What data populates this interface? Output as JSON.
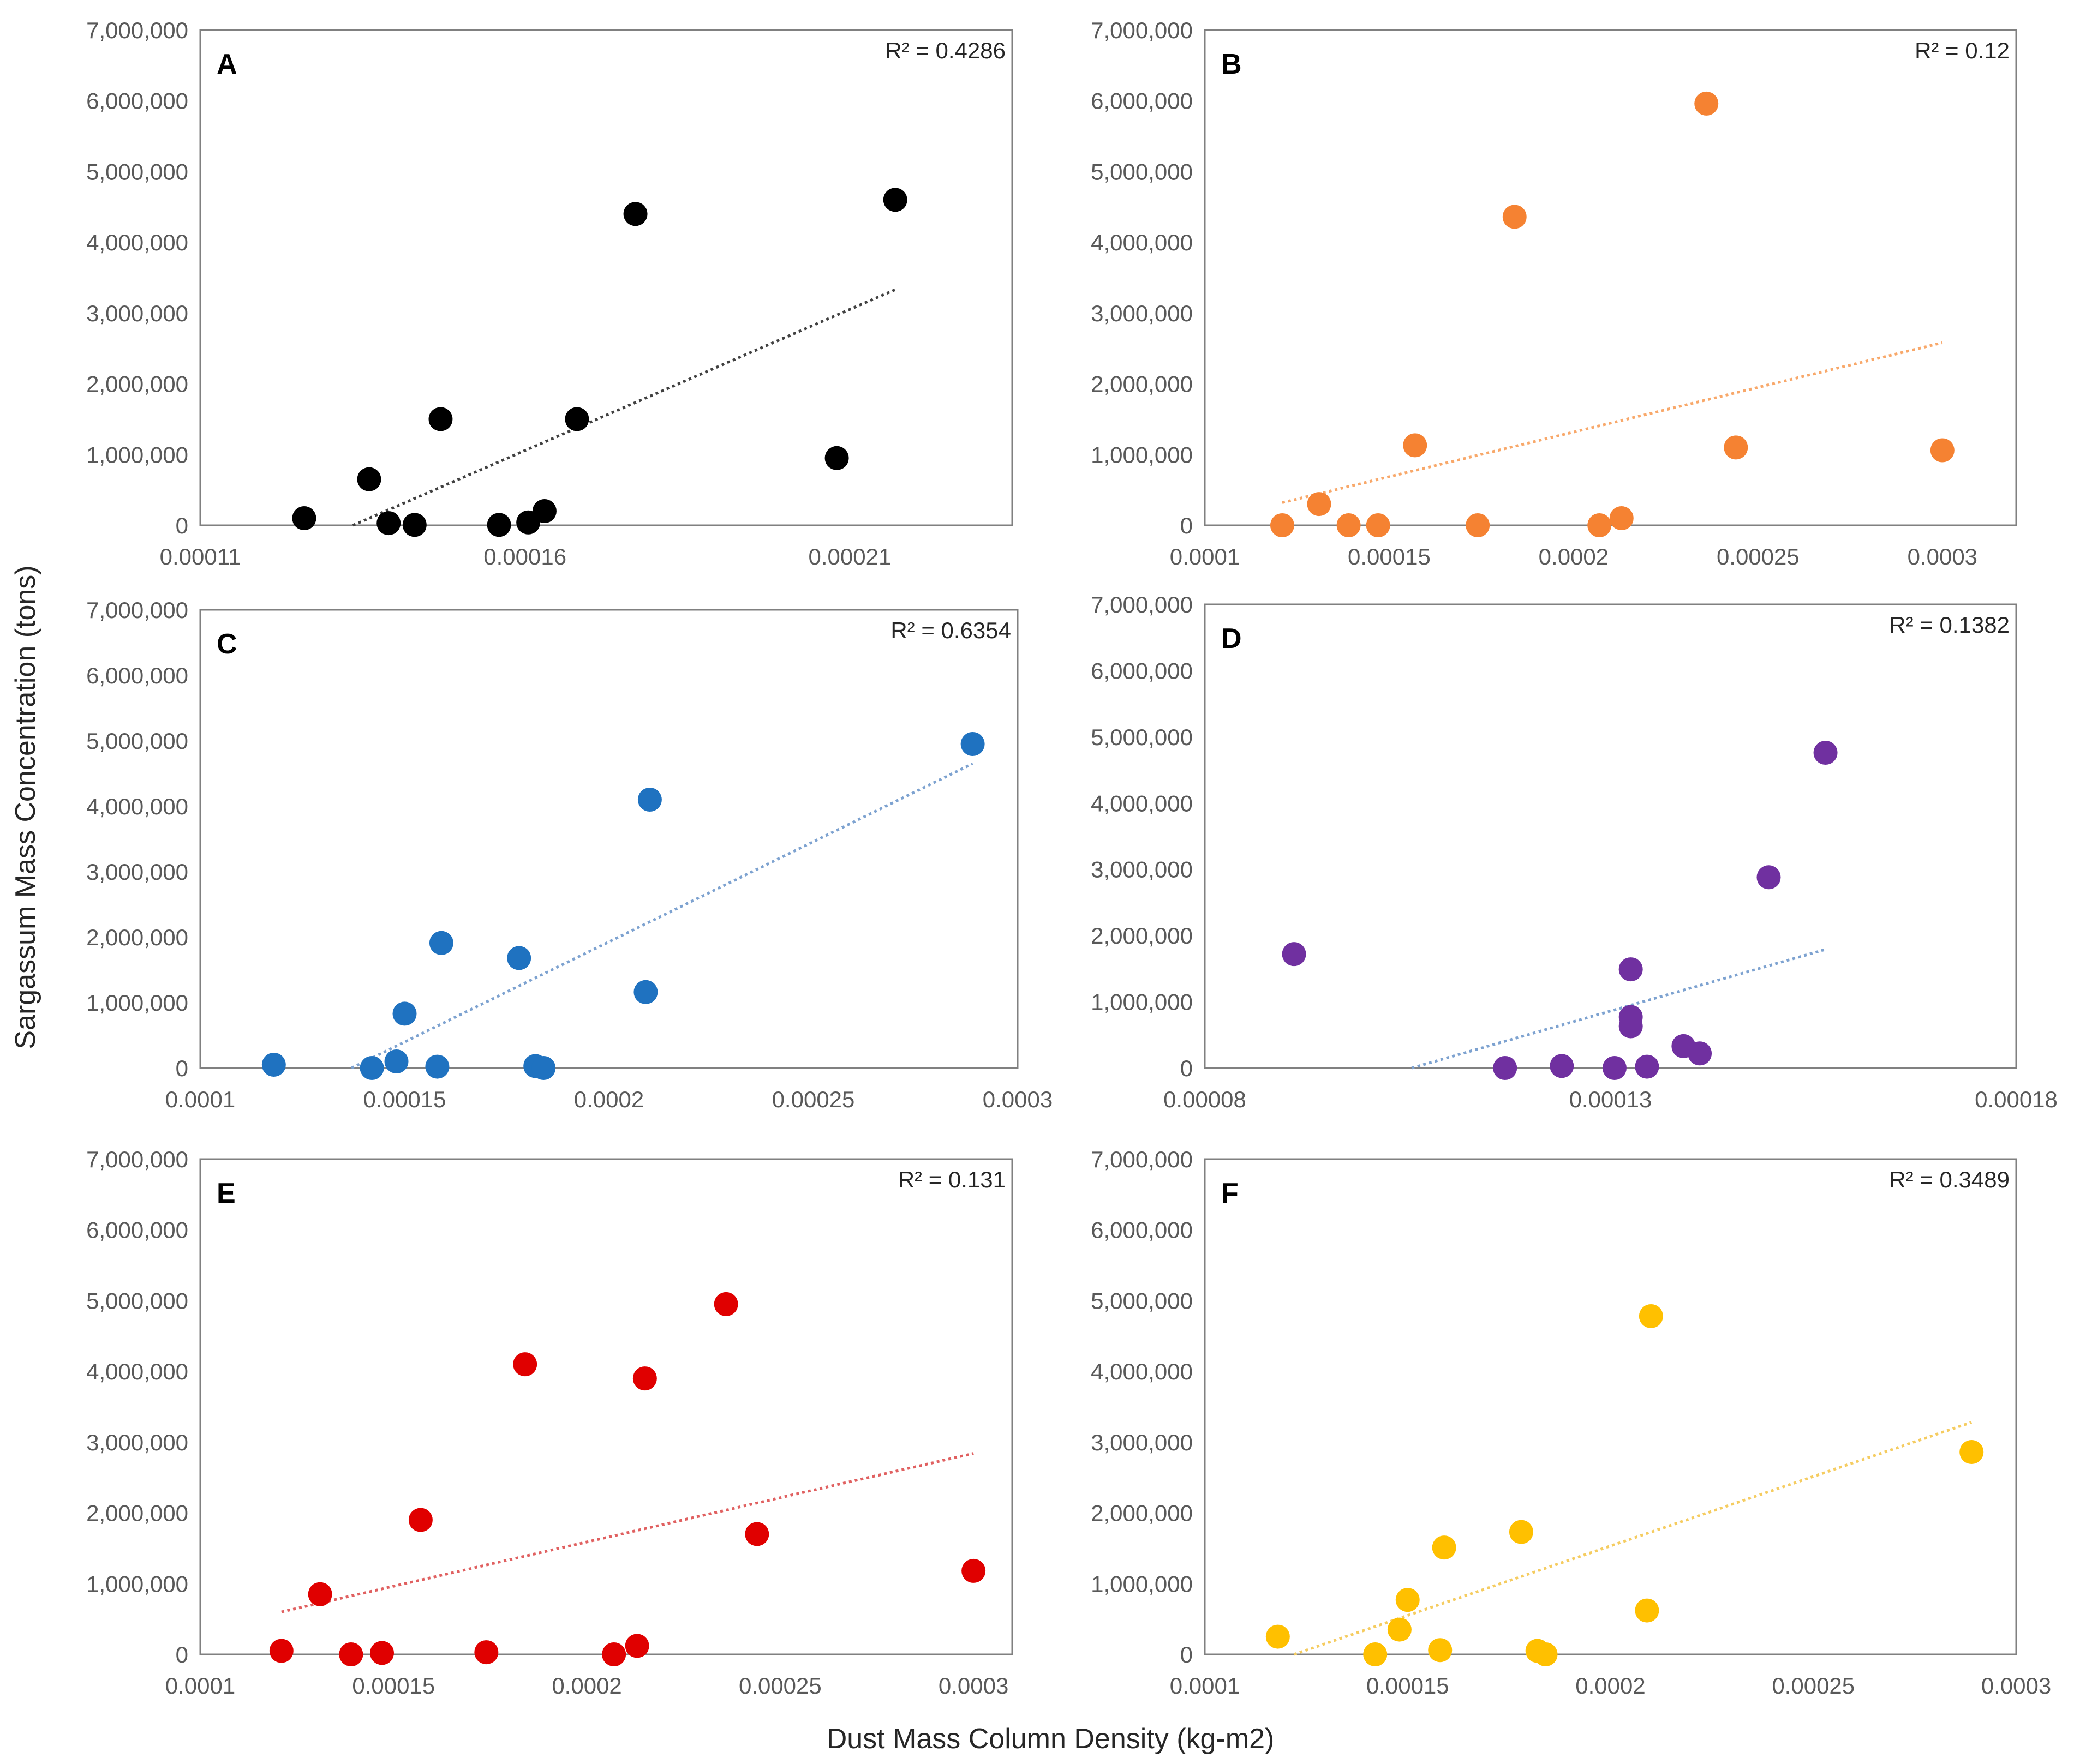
{
  "figure": {
    "xlabel": "Dust Mass Column Density (kg-m2)",
    "ylabel": "Sargassum Mass Concentration (tons)"
  },
  "chart_data": [
    {
      "type": "scatter",
      "panel": "A",
      "r2": "R² = 0.4286",
      "color": "#000000",
      "trend_color": "#404040",
      "xlim": [
        0.00011,
        0.000235
      ],
      "ylim": [
        0,
        7000000
      ],
      "x_ticks": [
        "0.00011",
        "0.00016",
        "0.00021"
      ],
      "x_tick_values": [
        0.00011,
        0.00016,
        0.00021
      ],
      "y_ticks": [
        "0",
        "1,000,000",
        "2,000,000",
        "3,000,000",
        "4,000,000",
        "5,000,000",
        "6,000,000",
        "7,000,000"
      ],
      "y_tick_values": [
        0,
        1000000,
        2000000,
        3000000,
        4000000,
        5000000,
        6000000,
        7000000
      ],
      "points": [
        [
          0.000126,
          100000
        ],
        [
          0.000136,
          650000
        ],
        [
          0.000139,
          30000
        ],
        [
          0.000143,
          5000
        ],
        [
          0.000147,
          1500000
        ],
        [
          0.000156,
          5000
        ],
        [
          0.0001605,
          40000
        ],
        [
          0.000163,
          200000
        ],
        [
          0.000168,
          1500000
        ],
        [
          0.000177,
          4400000
        ],
        [
          0.000208,
          950000
        ],
        [
          0.000217,
          4600000
        ]
      ],
      "trend": [
        [
          0.0001335,
          0
        ],
        [
          0.000217,
          3330000
        ]
      ]
    },
    {
      "type": "scatter",
      "panel": "B",
      "r2": "R² = 0.12",
      "color": "#f58232",
      "trend_color": "#f8a86a",
      "xlim": [
        0.0001,
        0.00032
      ],
      "ylim": [
        0,
        7000000
      ],
      "x_ticks": [
        "0.0001",
        "0.00015",
        "0.0002",
        "0.00025",
        "0.0003"
      ],
      "x_tick_values": [
        0.0001,
        0.00015,
        0.0002,
        0.00025,
        0.0003
      ],
      "y_ticks": [
        "0",
        "1,000,000",
        "2,000,000",
        "3,000,000",
        "4,000,000",
        "5,000,000",
        "6,000,000",
        "7,000,000"
      ],
      "y_tick_values": [
        0,
        1000000,
        2000000,
        3000000,
        4000000,
        5000000,
        6000000,
        7000000
      ],
      "points": [
        [
          0.000121,
          0
        ],
        [
          0.000131,
          300000
        ],
        [
          0.000139,
          0
        ],
        [
          0.000147,
          0
        ],
        [
          0.000157,
          1130000
        ],
        [
          0.000174,
          0
        ],
        [
          0.000184,
          4360000
        ],
        [
          0.000207,
          0
        ],
        [
          0.000213,
          100000
        ],
        [
          0.000236,
          5960000
        ],
        [
          0.000244,
          1100000
        ],
        [
          0.0003,
          1060000
        ]
      ],
      "trend": [
        [
          0.000121,
          320000
        ],
        [
          0.0003,
          2580000
        ]
      ]
    },
    {
      "type": "scatter",
      "panel": "C",
      "r2": "R² = 0.6354",
      "color": "#1f72c0",
      "trend_color": "#7da2d0",
      "xlim": [
        0.0001,
        0.0003
      ],
      "ylim": [
        0,
        7000000
      ],
      "x_ticks": [
        "0.0001",
        "0.00015",
        "0.0002",
        "0.00025",
        "0.0003"
      ],
      "x_tick_values": [
        0.0001,
        0.00015,
        0.0002,
        0.00025,
        0.0003
      ],
      "y_ticks": [
        "0",
        "1,000,000",
        "2,000,000",
        "3,000,000",
        "4,000,000",
        "5,000,000",
        "6,000,000",
        "7,000,000"
      ],
      "y_tick_values": [
        0,
        1000000,
        2000000,
        3000000,
        4000000,
        5000000,
        6000000,
        7000000
      ],
      "points": [
        [
          0.000118,
          50000
        ],
        [
          0.000142,
          0
        ],
        [
          0.000148,
          100000
        ],
        [
          0.00015,
          830000
        ],
        [
          0.000158,
          20000
        ],
        [
          0.000159,
          1910000
        ],
        [
          0.000178,
          1680000
        ],
        [
          0.000182,
          30000
        ],
        [
          0.000184,
          0
        ],
        [
          0.000209,
          1160000
        ],
        [
          0.00021,
          4100000
        ],
        [
          0.000289,
          4950000
        ]
      ],
      "trend": [
        [
          0.000137,
          0
        ],
        [
          0.000289,
          4650000
        ]
      ]
    },
    {
      "type": "scatter",
      "panel": "D",
      "r2": "R² = 0.1382",
      "color": "#7030a0",
      "trend_color": "#7da2d0",
      "xlim": [
        8e-05,
        0.00018
      ],
      "ylim": [
        0,
        7000000
      ],
      "x_ticks": [
        "0.00008",
        "0.00013",
        "0.00018"
      ],
      "x_tick_values": [
        8e-05,
        0.00013,
        0.00018
      ],
      "y_ticks": [
        "0",
        "1,000,000",
        "2,000,000",
        "3,000,000",
        "4,000,000",
        "5,000,000",
        "6,000,000",
        "7,000,000"
      ],
      "y_tick_values": [
        0,
        1000000,
        2000000,
        3000000,
        4000000,
        5000000,
        6000000,
        7000000
      ],
      "points": [
        [
          9.1e-05,
          1720000
        ],
        [
          0.000117,
          0
        ],
        [
          0.000124,
          30000
        ],
        [
          0.0001305,
          0
        ],
        [
          0.0001325,
          1490000
        ],
        [
          0.0001325,
          770000
        ],
        [
          0.0001325,
          630000
        ],
        [
          0.0001345,
          20000
        ],
        [
          0.000139,
          330000
        ],
        [
          0.000141,
          220000
        ],
        [
          0.0001495,
          2880000
        ],
        [
          0.0001565,
          4760000
        ]
      ],
      "trend": [
        [
          0.0001055,
          0
        ],
        [
          0.0001565,
          1790000
        ]
      ]
    },
    {
      "type": "scatter",
      "panel": "E",
      "r2": "R² = 0.131",
      "color": "#e00000",
      "trend_color": "#e06060",
      "xlim": [
        0.0001,
        0.00031
      ],
      "ylim": [
        0,
        7000000
      ],
      "x_ticks": [
        "0.0001",
        "0.00015",
        "0.0002",
        "0.00025",
        "0.0003"
      ],
      "x_tick_values": [
        0.0001,
        0.00015,
        0.0002,
        0.00025,
        0.0003
      ],
      "y_ticks": [
        "0",
        "1,000,000",
        "2,000,000",
        "3,000,000",
        "4,000,000",
        "5,000,000",
        "6,000,000",
        "7,000,000"
      ],
      "y_tick_values": [
        0,
        1000000,
        2000000,
        3000000,
        4000000,
        5000000,
        6000000,
        7000000
      ],
      "points": [
        [
          0.000121,
          50000
        ],
        [
          0.000131,
          850000
        ],
        [
          0.000139,
          0
        ],
        [
          0.000147,
          20000
        ],
        [
          0.000157,
          1900000
        ],
        [
          0.000174,
          30000
        ],
        [
          0.000184,
          4100000
        ],
        [
          0.000207,
          0
        ],
        [
          0.000213,
          120000
        ],
        [
          0.000215,
          3900000
        ],
        [
          0.000236,
          4950000
        ],
        [
          0.000244,
          1700000
        ],
        [
          0.0003,
          1180000
        ]
      ],
      "trend": [
        [
          0.000121,
          600000
        ],
        [
          0.0003,
          2840000
        ]
      ]
    },
    {
      "type": "scatter",
      "panel": "F",
      "r2": "R² = 0.3489",
      "color": "#ffc000",
      "trend_color": "#f5cc60",
      "xlim": [
        0.0001,
        0.0003
      ],
      "ylim": [
        0,
        7000000
      ],
      "x_ticks": [
        "0.0001",
        "0.00015",
        "0.0002",
        "0.00025",
        "0.0003"
      ],
      "x_tick_values": [
        0.0001,
        0.00015,
        0.0002,
        0.00025,
        0.0003
      ],
      "y_ticks": [
        "0",
        "1,000,000",
        "2,000,000",
        "3,000,000",
        "4,000,000",
        "5,000,000",
        "6,000,000",
        "7,000,000"
      ],
      "y_tick_values": [
        0,
        1000000,
        2000000,
        3000000,
        4000000,
        5000000,
        6000000,
        7000000
      ],
      "points": [
        [
          0.000118,
          250000
        ],
        [
          0.000142,
          0
        ],
        [
          0.000148,
          350000
        ],
        [
          0.00015,
          770000
        ],
        [
          0.000158,
          60000
        ],
        [
          0.000159,
          1510000
        ],
        [
          0.000178,
          1730000
        ],
        [
          0.000182,
          50000
        ],
        [
          0.000184,
          0
        ],
        [
          0.000209,
          620000
        ],
        [
          0.00021,
          4780000
        ],
        [
          0.000289,
          2860000
        ]
      ],
      "trend": [
        [
          0.000122,
          0
        ],
        [
          0.000289,
          3280000
        ]
      ]
    }
  ]
}
